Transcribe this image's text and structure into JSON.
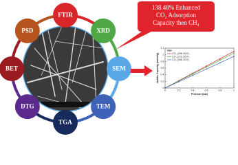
{
  "nodes": [
    {
      "label": "FTIR",
      "color": "#d9262b"
    },
    {
      "label": "XRD",
      "color": "#4fa845"
    },
    {
      "label": "SEM",
      "color": "#5aa7e6"
    },
    {
      "label": "TEM",
      "color": "#3e62b8"
    },
    {
      "label": "TGA",
      "color": "#162a5c"
    },
    {
      "label": "DTG",
      "color": "#5b2a8c"
    },
    {
      "label": "BET",
      "color": "#9b1c20"
    },
    {
      "label": "PSD",
      "color": "#b5541f"
    }
  ],
  "callout": {
    "lines": [
      "138.48% Enhanced",
      "CO₂ Adsorption",
      "Capacity then CH₄"
    ],
    "color": "#e0242b"
  },
  "chart_data": {
    "type": "line",
    "x": [
      0,
      0.2,
      0.4,
      0.6,
      0.8,
      1
    ],
    "x_label": "Pressure (bar)",
    "y_label": "Uptake Capacity (mmol/g)",
    "legend_title": "Gas",
    "series": [
      {
        "name": "CO₂ (298.15 K)",
        "color": "#d9262b",
        "values": [
          0,
          0.22,
          0.44,
          0.66,
          0.88,
          1.1
        ]
      },
      {
        "name": "CO₂ (273.15 K)",
        "color": "#4fa845",
        "values": [
          0,
          0.21,
          0.42,
          0.63,
          0.84,
          1.05
        ]
      },
      {
        "name": "CO₂ (348.15 K)",
        "color": "#3e62b8",
        "values": [
          0,
          0.19,
          0.38,
          0.57,
          0.76,
          0.95
        ]
      }
    ],
    "xlim": [
      0,
      1
    ],
    "ylim": [
      0,
      1.2
    ],
    "xticks": [
      0,
      0.2,
      0.4,
      0.6,
      0.8,
      1
    ],
    "yticks": [
      0,
      0.2,
      0.4,
      0.6,
      0.8,
      1,
      1.2
    ]
  }
}
